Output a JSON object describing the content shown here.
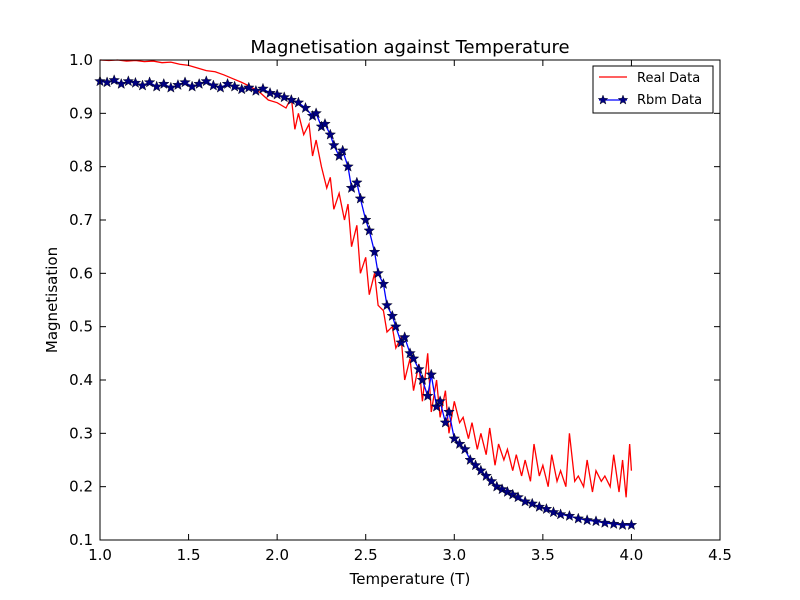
{
  "chart_data": {
    "type": "line",
    "title": "Magnetisation against Temperature",
    "xlabel": "Temperature (T)",
    "ylabel": "Magnetisation",
    "xlim": [
      1.0,
      4.5
    ],
    "ylim": [
      0.1,
      1.0
    ],
    "xticks": [
      "1.0",
      "1.5",
      "2.0",
      "2.5",
      "3.0",
      "3.5",
      "4.0",
      "4.5"
    ],
    "yticks": [
      "0.1",
      "0.2",
      "0.3",
      "0.4",
      "0.5",
      "0.6",
      "0.7",
      "0.8",
      "0.9",
      "1.0"
    ],
    "grid": false,
    "legend_position": "top-right",
    "series": [
      {
        "name": "Real Data",
        "color": "#ff0000",
        "marker": "none",
        "x": [
          1.0,
          1.05,
          1.1,
          1.15,
          1.2,
          1.25,
          1.3,
          1.35,
          1.4,
          1.45,
          1.5,
          1.55,
          1.6,
          1.65,
          1.7,
          1.75,
          1.8,
          1.85,
          1.9,
          1.95,
          2.0,
          2.05,
          2.08,
          2.1,
          2.12,
          2.15,
          2.18,
          2.2,
          2.22,
          2.25,
          2.28,
          2.3,
          2.32,
          2.35,
          2.38,
          2.4,
          2.42,
          2.45,
          2.47,
          2.5,
          2.52,
          2.55,
          2.57,
          2.6,
          2.62,
          2.65,
          2.67,
          2.7,
          2.72,
          2.75,
          2.77,
          2.8,
          2.82,
          2.85,
          2.87,
          2.9,
          2.92,
          2.95,
          2.97,
          3.0,
          3.03,
          3.05,
          3.08,
          3.1,
          3.13,
          3.15,
          3.18,
          3.2,
          3.23,
          3.25,
          3.28,
          3.3,
          3.33,
          3.35,
          3.38,
          3.4,
          3.43,
          3.45,
          3.48,
          3.5,
          3.53,
          3.55,
          3.58,
          3.6,
          3.63,
          3.65,
          3.68,
          3.7,
          3.73,
          3.75,
          3.78,
          3.8,
          3.83,
          3.85,
          3.88,
          3.9,
          3.93,
          3.95,
          3.97,
          3.99,
          4.0
        ],
        "y": [
          1.0,
          0.999,
          1.0,
          0.998,
          0.999,
          0.997,
          0.998,
          0.995,
          0.996,
          0.992,
          0.99,
          0.985,
          0.98,
          0.978,
          0.972,
          0.965,
          0.958,
          0.95,
          0.94,
          0.925,
          0.92,
          0.91,
          0.93,
          0.87,
          0.9,
          0.86,
          0.88,
          0.82,
          0.85,
          0.8,
          0.76,
          0.78,
          0.72,
          0.75,
          0.7,
          0.73,
          0.65,
          0.69,
          0.6,
          0.63,
          0.56,
          0.6,
          0.54,
          0.53,
          0.49,
          0.5,
          0.46,
          0.48,
          0.4,
          0.44,
          0.38,
          0.43,
          0.36,
          0.45,
          0.34,
          0.4,
          0.33,
          0.38,
          0.3,
          0.36,
          0.32,
          0.33,
          0.29,
          0.32,
          0.27,
          0.3,
          0.26,
          0.31,
          0.24,
          0.28,
          0.25,
          0.27,
          0.23,
          0.26,
          0.22,
          0.25,
          0.21,
          0.28,
          0.22,
          0.24,
          0.2,
          0.26,
          0.21,
          0.23,
          0.2,
          0.3,
          0.21,
          0.22,
          0.2,
          0.25,
          0.19,
          0.23,
          0.21,
          0.22,
          0.2,
          0.26,
          0.19,
          0.25,
          0.18,
          0.28,
          0.23
        ]
      },
      {
        "name": "Rbm Data",
        "color": "#0000ff",
        "marker": "star",
        "x": [
          1.0,
          1.04,
          1.08,
          1.12,
          1.16,
          1.2,
          1.24,
          1.28,
          1.32,
          1.36,
          1.4,
          1.44,
          1.48,
          1.52,
          1.56,
          1.6,
          1.64,
          1.68,
          1.72,
          1.76,
          1.8,
          1.84,
          1.88,
          1.92,
          1.96,
          2.0,
          2.04,
          2.08,
          2.12,
          2.16,
          2.2,
          2.22,
          2.25,
          2.27,
          2.3,
          2.32,
          2.35,
          2.37,
          2.4,
          2.42,
          2.45,
          2.47,
          2.5,
          2.52,
          2.55,
          2.57,
          2.6,
          2.62,
          2.65,
          2.67,
          2.7,
          2.72,
          2.75,
          2.77,
          2.8,
          2.82,
          2.85,
          2.87,
          2.9,
          2.92,
          2.95,
          2.97,
          3.0,
          3.03,
          3.06,
          3.09,
          3.12,
          3.15,
          3.18,
          3.21,
          3.24,
          3.27,
          3.3,
          3.33,
          3.36,
          3.4,
          3.44,
          3.48,
          3.52,
          3.56,
          3.6,
          3.65,
          3.7,
          3.75,
          3.8,
          3.85,
          3.9,
          3.95,
          4.0
        ],
        "y": [
          0.96,
          0.958,
          0.962,
          0.955,
          0.96,
          0.957,
          0.952,
          0.958,
          0.95,
          0.955,
          0.948,
          0.953,
          0.958,
          0.95,
          0.955,
          0.96,
          0.952,
          0.948,
          0.955,
          0.95,
          0.945,
          0.948,
          0.942,
          0.946,
          0.938,
          0.935,
          0.93,
          0.925,
          0.92,
          0.91,
          0.895,
          0.9,
          0.875,
          0.88,
          0.86,
          0.84,
          0.82,
          0.83,
          0.8,
          0.76,
          0.77,
          0.74,
          0.7,
          0.68,
          0.64,
          0.6,
          0.58,
          0.54,
          0.52,
          0.5,
          0.47,
          0.48,
          0.45,
          0.44,
          0.42,
          0.4,
          0.37,
          0.41,
          0.35,
          0.36,
          0.32,
          0.34,
          0.29,
          0.28,
          0.27,
          0.25,
          0.24,
          0.23,
          0.22,
          0.21,
          0.2,
          0.195,
          0.19,
          0.185,
          0.18,
          0.172,
          0.168,
          0.162,
          0.158,
          0.152,
          0.148,
          0.145,
          0.14,
          0.137,
          0.135,
          0.132,
          0.13,
          0.128,
          0.128
        ]
      }
    ]
  }
}
